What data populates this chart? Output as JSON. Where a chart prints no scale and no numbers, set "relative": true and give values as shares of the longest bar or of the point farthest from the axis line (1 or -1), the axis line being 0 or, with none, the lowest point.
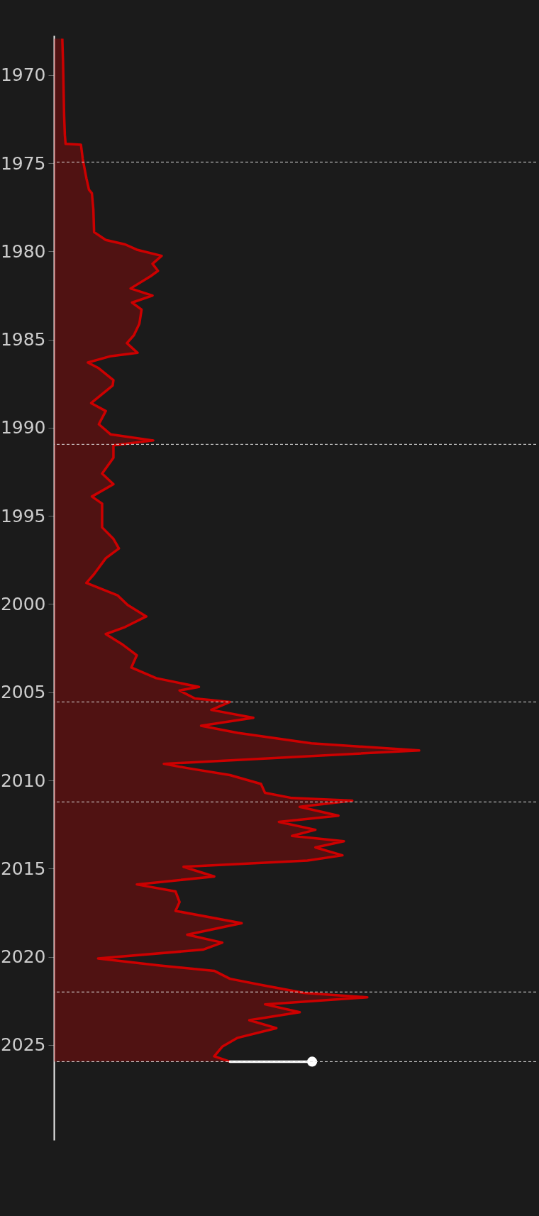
{
  "chart_data": {
    "type": "area",
    "orientation": "horizontal",
    "relative": true,
    "tick_labels": "y",
    "ylim": [
      2030.4,
      1967.75
    ],
    "yticks": [
      1970,
      1975,
      1980,
      1985,
      1990,
      1995,
      2000,
      2005,
      2010,
      2015,
      2020,
      2025
    ],
    "ref_lines": [
      {
        "axis": "y",
        "value": 1974.93,
        "color": "#dddddd",
        "line_style": "dashed"
      },
      {
        "axis": "y",
        "value": 1990.94,
        "color": "#dddddd",
        "line_style": "dashed"
      },
      {
        "axis": "y",
        "value": 2005.55,
        "color": "#dddddd",
        "line_style": "dashed"
      },
      {
        "axis": "y",
        "value": 2011.22,
        "color": "#dddddd",
        "line_style": "dashed"
      },
      {
        "axis": "y",
        "value": 2022.0,
        "color": "#dddddd",
        "line_style": "dashed"
      },
      {
        "axis": "y",
        "value": 2025.95,
        "color": "#dddddd",
        "line_style": "dashed"
      }
    ],
    "series": [
      {
        "color": "#cc0000",
        "x": [
          1967.93,
          1969.25,
          1972.3,
          1973.4,
          1973.9,
          1973.95,
          1974.75,
          1975.2,
          1975.85,
          1976.5,
          1976.7,
          1977.6,
          1978.9,
          1979.35,
          1979.6,
          1979.9,
          1980.25,
          1980.7,
          1981.1,
          1981.4,
          1982.1,
          1982.5,
          1982.9,
          1983.3,
          1984.1,
          1984.75,
          1985.2,
          1985.75,
          1985.95,
          1986.3,
          1986.6,
          1987.3,
          1987.6,
          1988.6,
          1989.05,
          1989.8,
          1990.37,
          1990.72,
          1991.0,
          1991.7,
          1992.6,
          1993.2,
          1993.9,
          1994.3,
          1995.0,
          1995.65,
          1996.3,
          1996.85,
          1997.4,
          1998.3,
          1998.8,
          1999.5,
          2000.05,
          2000.7,
          2001.3,
          2001.7,
          2002.25,
          2002.9,
          2003.6,
          2004.2,
          2004.7,
          2004.9,
          2005.35,
          2005.55,
          2006.0,
          2006.45,
          2006.9,
          2007.3,
          2007.9,
          2008.3,
          2009.06,
          2009.3,
          2009.7,
          2010.2,
          2010.7,
          2011.0,
          2011.15,
          2011.5,
          2012.0,
          2012.35,
          2012.8,
          2013.15,
          2013.45,
          2013.8,
          2014.25,
          2014.55,
          2014.9,
          2015.45,
          2015.9,
          2016.3,
          2016.9,
          2017.4,
          2018.1,
          2018.75,
          2019.2,
          2019.6,
          2020.1,
          2020.5,
          2020.8,
          2021.25,
          2021.6,
          2022.05,
          2022.3,
          2022.7,
          2023.15,
          2023.6,
          2024.05,
          2024.6,
          2025.1,
          2025.65,
          2025.95
        ],
        "values": [
          0.023,
          0.025,
          0.028,
          0.03,
          0.032,
          0.074,
          0.079,
          0.083,
          0.089,
          0.096,
          0.104,
          0.108,
          0.11,
          0.142,
          0.195,
          0.227,
          0.295,
          0.27,
          0.285,
          0.265,
          0.21,
          0.27,
          0.214,
          0.24,
          0.234,
          0.219,
          0.2,
          0.229,
          0.153,
          0.093,
          0.121,
          0.163,
          0.161,
          0.102,
          0.142,
          0.123,
          0.155,
          0.272,
          0.163,
          0.163,
          0.132,
          0.163,
          0.104,
          0.132,
          0.132,
          0.132,
          0.163,
          0.178,
          0.142,
          0.11,
          0.089,
          0.174,
          0.202,
          0.253,
          0.195,
          0.142,
          0.185,
          0.227,
          0.212,
          0.28,
          0.397,
          0.344,
          0.386,
          0.482,
          0.431,
          0.546,
          0.403,
          0.503,
          0.705,
          1.0,
          0.301,
          0.365,
          0.482,
          0.567,
          0.578,
          0.652,
          0.817,
          0.673,
          0.779,
          0.616,
          0.716,
          0.652,
          0.794,
          0.716,
          0.79,
          0.694,
          0.355,
          0.439,
          0.227,
          0.333,
          0.344,
          0.333,
          0.514,
          0.365,
          0.461,
          0.408,
          0.121,
          0.291,
          0.439,
          0.482,
          0.567,
          0.684,
          0.858,
          0.578,
          0.673,
          0.535,
          0.609,
          0.503,
          0.461,
          0.439,
          0.482
        ]
      },
      {
        "type": "line",
        "color": "#ffffff",
        "x": [
          2025.95,
          2025.95
        ],
        "values": [
          0.482,
          0.707
        ]
      },
      {
        "type": "scatter",
        "color": "#ffffff",
        "marker": "circle",
        "x": [
          2025.95
        ],
        "values": [
          0.707
        ]
      }
    ]
  }
}
